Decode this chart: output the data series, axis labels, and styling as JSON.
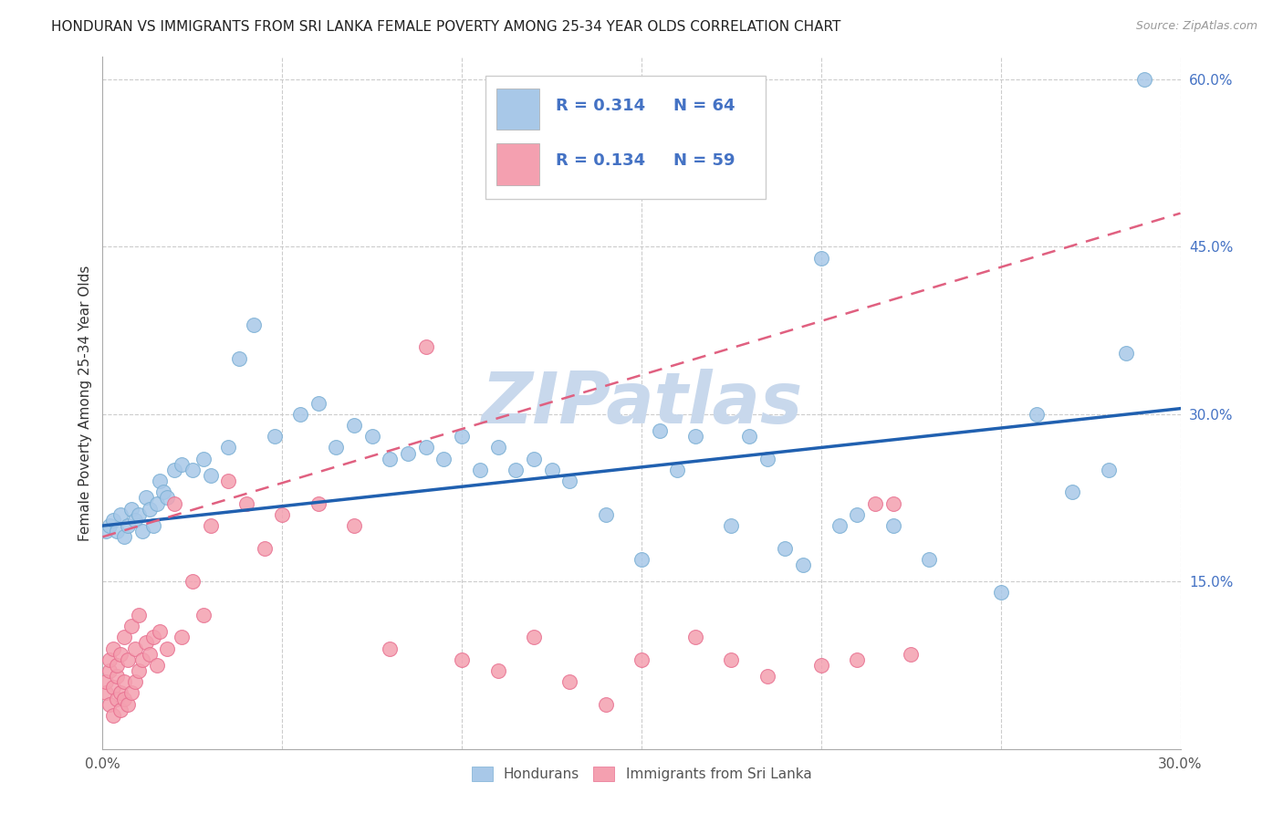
{
  "title": "HONDURAN VS IMMIGRANTS FROM SRI LANKA FEMALE POVERTY AMONG 25-34 YEAR OLDS CORRELATION CHART",
  "source": "Source: ZipAtlas.com",
  "ylabel": "Female Poverty Among 25-34 Year Olds",
  "xmin": 0.0,
  "xmax": 0.3,
  "ymin": 0.0,
  "ymax": 0.62,
  "blue_color": "#a8c8e8",
  "blue_edge_color": "#7aafd4",
  "pink_color": "#f4a0b0",
  "pink_edge_color": "#e87090",
  "blue_line_color": "#2060b0",
  "pink_line_color": "#e06080",
  "legend_text_color": "#4472c4",
  "watermark": "ZIPatlas",
  "watermark_color": "#c8d8ec",
  "hondurans_x": [
    0.001,
    0.002,
    0.003,
    0.004,
    0.005,
    0.006,
    0.007,
    0.008,
    0.009,
    0.01,
    0.011,
    0.012,
    0.013,
    0.014,
    0.015,
    0.016,
    0.017,
    0.018,
    0.02,
    0.022,
    0.025,
    0.028,
    0.03,
    0.035,
    0.038,
    0.042,
    0.048,
    0.055,
    0.06,
    0.065,
    0.07,
    0.075,
    0.08,
    0.085,
    0.09,
    0.095,
    0.1,
    0.105,
    0.11,
    0.115,
    0.12,
    0.125,
    0.13,
    0.14,
    0.15,
    0.155,
    0.16,
    0.165,
    0.175,
    0.18,
    0.185,
    0.19,
    0.195,
    0.2,
    0.205,
    0.21,
    0.22,
    0.23,
    0.25,
    0.26,
    0.27,
    0.28,
    0.285,
    0.29
  ],
  "hondurans_y": [
    0.195,
    0.2,
    0.205,
    0.195,
    0.21,
    0.19,
    0.2,
    0.215,
    0.205,
    0.21,
    0.195,
    0.225,
    0.215,
    0.2,
    0.22,
    0.24,
    0.23,
    0.225,
    0.25,
    0.255,
    0.25,
    0.26,
    0.245,
    0.27,
    0.35,
    0.38,
    0.28,
    0.3,
    0.31,
    0.27,
    0.29,
    0.28,
    0.26,
    0.265,
    0.27,
    0.26,
    0.28,
    0.25,
    0.27,
    0.25,
    0.26,
    0.25,
    0.24,
    0.21,
    0.17,
    0.285,
    0.25,
    0.28,
    0.2,
    0.28,
    0.26,
    0.18,
    0.165,
    0.44,
    0.2,
    0.21,
    0.2,
    0.17,
    0.14,
    0.3,
    0.23,
    0.25,
    0.355,
    0.6
  ],
  "srilanka_x": [
    0.001,
    0.001,
    0.002,
    0.002,
    0.002,
    0.003,
    0.003,
    0.003,
    0.004,
    0.004,
    0.004,
    0.005,
    0.005,
    0.005,
    0.006,
    0.006,
    0.006,
    0.007,
    0.007,
    0.008,
    0.008,
    0.009,
    0.009,
    0.01,
    0.01,
    0.011,
    0.012,
    0.013,
    0.014,
    0.015,
    0.016,
    0.018,
    0.02,
    0.022,
    0.025,
    0.028,
    0.03,
    0.035,
    0.04,
    0.045,
    0.05,
    0.06,
    0.07,
    0.08,
    0.09,
    0.1,
    0.11,
    0.12,
    0.13,
    0.14,
    0.15,
    0.165,
    0.175,
    0.185,
    0.2,
    0.21,
    0.215,
    0.22,
    0.225
  ],
  "srilanka_y": [
    0.05,
    0.06,
    0.04,
    0.07,
    0.08,
    0.03,
    0.055,
    0.09,
    0.045,
    0.065,
    0.075,
    0.035,
    0.05,
    0.085,
    0.045,
    0.06,
    0.1,
    0.04,
    0.08,
    0.05,
    0.11,
    0.06,
    0.09,
    0.07,
    0.12,
    0.08,
    0.095,
    0.085,
    0.1,
    0.075,
    0.105,
    0.09,
    0.22,
    0.1,
    0.15,
    0.12,
    0.2,
    0.24,
    0.22,
    0.18,
    0.21,
    0.22,
    0.2,
    0.09,
    0.36,
    0.08,
    0.07,
    0.1,
    0.06,
    0.04,
    0.08,
    0.1,
    0.08,
    0.065,
    0.075,
    0.08,
    0.22,
    0.22,
    0.085
  ],
  "blue_line_x": [
    0.0,
    0.3
  ],
  "blue_line_y": [
    0.2,
    0.305
  ],
  "pink_line_x": [
    0.0,
    0.3
  ],
  "pink_line_y": [
    0.19,
    0.48
  ]
}
